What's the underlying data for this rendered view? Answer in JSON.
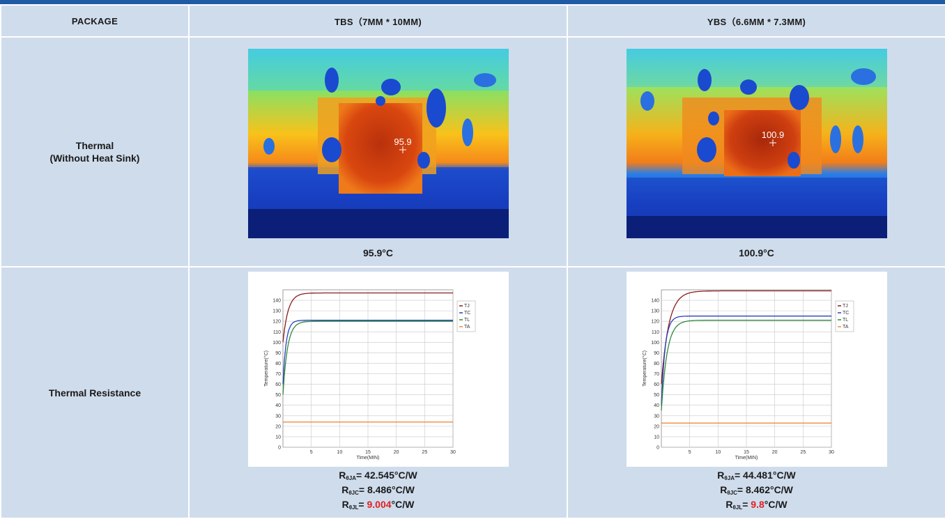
{
  "table": {
    "header": {
      "package": "PACKAGE",
      "col1": "TBS（7MM * 10MM)",
      "col2": "YBS（6.6MM * 7.3MM)"
    },
    "rows": {
      "thermal_line1": "Thermal",
      "thermal_line2": "(Without Heat Sink)",
      "resistance": "Thermal Resistance"
    }
  },
  "thermal": {
    "tbs": {
      "overlay": "95.9",
      "caption": "95.9°C"
    },
    "ybs": {
      "overlay": "100.9",
      "caption": "100.9°C"
    }
  },
  "resistance": {
    "tbs": {
      "ja_sub": "θJA",
      "ja_value": "= 42.545°C/W",
      "jc_sub": "θJC",
      "jc_value": "= 8.486°C/W",
      "jl_sub": "θJL",
      "jl_pre": "= ",
      "jl_red": "9.004",
      "jl_post": "°C/W"
    },
    "ybs": {
      "ja_sub": "θJA",
      "ja_value": "= 44.481°C/W",
      "jc_sub": "θJC",
      "jc_value": "= 8.462°C/W",
      "jl_sub": "θJL",
      "jl_pre": "= ",
      "jl_red": "9.8",
      "jl_post": "°C/W"
    }
  },
  "colors": {
    "header_bg": "#cfdcec",
    "accent_line": "#1f5aa6",
    "highlight_red": "#e21f1f",
    "TJ": "#8b1a1a",
    "TC": "#2a3fc0",
    "TL": "#2e8b3a",
    "TA": "#f08a3c"
  },
  "chart_data": [
    {
      "type": "line",
      "xlabel": "Time(MIN)",
      "ylabel": "Temperature(°C)",
      "xlim": [
        0,
        30
      ],
      "ylim": [
        0,
        150
      ],
      "x_ticks": [
        5,
        10,
        15,
        20,
        25,
        30
      ],
      "y_ticks": [
        0,
        10,
        20,
        30,
        40,
        50,
        60,
        70,
        80,
        90,
        100,
        110,
        120,
        130,
        140
      ],
      "legend_position": "top-right",
      "series": [
        {
          "name": "TJ",
          "steady": 147,
          "initial": 100,
          "tau": 0.9
        },
        {
          "name": "TC",
          "steady": 121,
          "initial": 60,
          "tau": 0.55
        },
        {
          "name": "TL",
          "steady": 120,
          "initial": 50,
          "tau": 0.8
        },
        {
          "name": "TA",
          "steady": 24,
          "initial": 24,
          "tau": 1
        }
      ]
    },
    {
      "type": "line",
      "xlabel": "Time(MIN)",
      "ylabel": "Temperature(°C)",
      "xlim": [
        0,
        30
      ],
      "ylim": [
        0,
        150
      ],
      "x_ticks": [
        5,
        10,
        15,
        20,
        25,
        30
      ],
      "y_ticks": [
        0,
        10,
        20,
        30,
        40,
        50,
        60,
        70,
        80,
        90,
        100,
        110,
        120,
        130,
        140
      ],
      "legend_position": "top-right",
      "series": [
        {
          "name": "TJ",
          "steady": 149,
          "initial": 60,
          "tau": 1.3
        },
        {
          "name": "TC",
          "steady": 125,
          "initial": 40,
          "tau": 0.65
        },
        {
          "name": "TL",
          "steady": 121,
          "initial": 35,
          "tau": 1.0
        },
        {
          "name": "TA",
          "steady": 23,
          "initial": 23,
          "tau": 1
        }
      ]
    }
  ]
}
